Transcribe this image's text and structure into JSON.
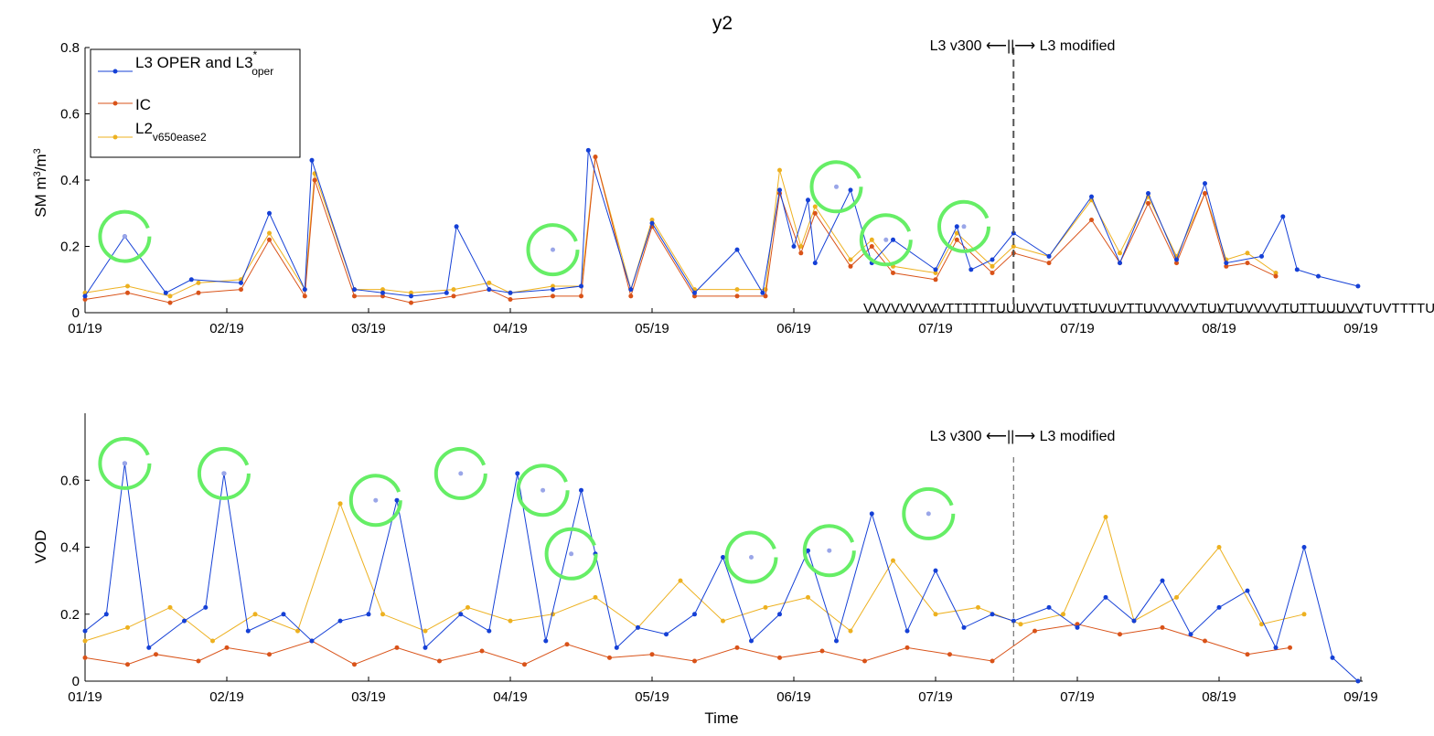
{
  "figure": {
    "title": "y2",
    "xlabel": "Time",
    "annotation": "L3 v300 ⟵||⟶ L3 modified"
  },
  "legend": {
    "entries": [
      {
        "base": "L3 OPER and L3",
        "sub": "oper",
        "sup": "*"
      },
      {
        "base": "IC",
        "sub": "",
        "sup": ""
      },
      {
        "base": "L2",
        "sub": "v650ease2",
        "sup": ""
      }
    ]
  },
  "colors": {
    "l3": "#1540d6",
    "ic": "#d95319",
    "l2": "#edb120",
    "circle": "#66ee66",
    "divider": "#555555"
  },
  "chart_data": [
    {
      "type": "line",
      "ylabel": "SM m3/m3",
      "ylabel_parts": {
        "a": "SM m",
        "b": "3",
        "c": "/m",
        "d": "3"
      },
      "ylim": [
        0,
        0.8
      ],
      "yticks": [
        "0",
        "0.2",
        "0.4",
        "0.6",
        "0.8"
      ],
      "xticks": [
        "01/19",
        "02/19",
        "03/19",
        "04/19",
        "05/19",
        "06/19",
        "07/19",
        "07/19",
        "08/19",
        "09/19"
      ],
      "divider_x": 6.55,
      "overlap_tick_text": "VVVVVVVVVTTTTTTUUUVVTUVTTUVUVTTUVVVVVTUVTUVVVVTUTTUUUVVTUVTTTTUUUVVVTT",
      "series": [
        {
          "name": "L3 OPER and L3*oper",
          "key": "l3",
          "x": [
            0,
            0.28,
            0.57,
            0.75,
            1.1,
            1.3,
            1.55,
            1.6,
            1.9,
            2.1,
            2.3,
            2.55,
            2.62,
            2.85,
            3.0,
            3.3,
            3.5,
            3.55,
            3.85,
            4.0,
            4.3,
            4.6,
            4.78,
            4.9,
            5.0,
            5.1,
            5.15,
            5.4,
            5.55,
            5.7,
            6.0,
            6.15,
            6.25,
            6.4,
            6.55,
            6.8,
            7.1,
            7.3,
            7.5,
            7.7,
            7.9,
            8.05,
            8.3,
            8.45,
            8.55,
            8.7,
            8.98
          ],
          "y": [
            0.05,
            0.23,
            0.06,
            0.1,
            0.09,
            0.3,
            0.07,
            0.46,
            0.07,
            0.06,
            0.05,
            0.06,
            0.26,
            0.07,
            0.06,
            0.07,
            0.08,
            0.49,
            0.07,
            0.27,
            0.06,
            0.19,
            0.06,
            0.37,
            0.2,
            0.34,
            0.15,
            0.37,
            0.15,
            0.22,
            0.13,
            0.26,
            0.13,
            0.16,
            0.24,
            0.17,
            0.35,
            0.15,
            0.36,
            0.16,
            0.39,
            0.15,
            0.17,
            0.29,
            0.13,
            0.11,
            0.08
          ]
        },
        {
          "name": "IC",
          "key": "ic",
          "x": [
            0,
            0.3,
            0.6,
            0.8,
            1.1,
            1.3,
            1.55,
            1.62,
            1.9,
            2.1,
            2.3,
            2.6,
            2.85,
            3.0,
            3.3,
            3.5,
            3.6,
            3.85,
            4.0,
            4.3,
            4.6,
            4.8,
            4.9,
            5.05,
            5.15,
            5.4,
            5.55,
            5.7,
            6.0,
            6.15,
            6.4,
            6.55,
            6.8,
            7.1,
            7.3,
            7.5,
            7.7,
            7.9,
            8.05,
            8.2,
            8.4
          ],
          "y": [
            0.04,
            0.06,
            0.03,
            0.06,
            0.07,
            0.22,
            0.05,
            0.4,
            0.05,
            0.05,
            0.03,
            0.05,
            0.07,
            0.04,
            0.05,
            0.05,
            0.47,
            0.05,
            0.26,
            0.05,
            0.05,
            0.05,
            0.36,
            0.18,
            0.3,
            0.14,
            0.2,
            0.12,
            0.1,
            0.22,
            0.12,
            0.18,
            0.15,
            0.28,
            0.15,
            0.33,
            0.15,
            0.36,
            0.14,
            0.15,
            0.11
          ]
        },
        {
          "name": "L2v650ease2",
          "key": "l2",
          "x": [
            0,
            0.3,
            0.6,
            0.8,
            1.1,
            1.3,
            1.55,
            1.62,
            1.9,
            2.1,
            2.3,
            2.6,
            2.85,
            3.0,
            3.3,
            3.5,
            3.6,
            3.85,
            4.0,
            4.3,
            4.6,
            4.8,
            4.9,
            5.05,
            5.15,
            5.4,
            5.55,
            5.7,
            6.0,
            6.15,
            6.4,
            6.55,
            6.8,
            7.1,
            7.3,
            7.5,
            7.7,
            7.9,
            8.05,
            8.2,
            8.4
          ],
          "y": [
            0.06,
            0.08,
            0.05,
            0.09,
            0.1,
            0.24,
            0.07,
            0.42,
            0.07,
            0.07,
            0.06,
            0.07,
            0.09,
            0.06,
            0.08,
            0.08,
            0.47,
            0.07,
            0.28,
            0.07,
            0.07,
            0.07,
            0.43,
            0.2,
            0.32,
            0.16,
            0.22,
            0.14,
            0.12,
            0.24,
            0.14,
            0.2,
            0.17,
            0.34,
            0.18,
            0.35,
            0.17,
            0.36,
            0.16,
            0.18,
            0.12
          ]
        }
      ],
      "highlighted_points": [
        {
          "x": 0.28,
          "y": 0.23
        },
        {
          "x": 3.3,
          "y": 0.19
        },
        {
          "x": 5.3,
          "y": 0.38
        },
        {
          "x": 5.65,
          "y": 0.22
        },
        {
          "x": 6.2,
          "y": 0.26
        }
      ]
    },
    {
      "type": "line",
      "ylabel": "VOD",
      "ylim": [
        0,
        0.8
      ],
      "yticks": [
        "0",
        "0.2",
        "0.4",
        "0.6"
      ],
      "xticks": [
        "01/19",
        "02/19",
        "03/19",
        "04/19",
        "05/19",
        "06/19",
        "07/19",
        "07/19",
        "08/19",
        "09/19"
      ],
      "divider_x": 6.55,
      "series": [
        {
          "name": "L3 OPER and L3*oper",
          "key": "l3",
          "x": [
            0,
            0.15,
            0.28,
            0.45,
            0.7,
            0.85,
            0.98,
            1.15,
            1.4,
            1.6,
            1.8,
            2.0,
            2.2,
            2.4,
            2.65,
            2.85,
            3.05,
            3.25,
            3.5,
            3.6,
            3.75,
            3.9,
            4.1,
            4.3,
            4.5,
            4.7,
            4.9,
            5.1,
            5.3,
            5.55,
            5.8,
            6.0,
            6.2,
            6.4,
            6.55,
            6.8,
            7.0,
            7.2,
            7.4,
            7.6,
            7.8,
            8.0,
            8.2,
            8.4,
            8.6,
            8.8,
            8.98
          ],
          "y": [
            0.15,
            0.2,
            0.65,
            0.1,
            0.18,
            0.22,
            0.62,
            0.15,
            0.2,
            0.12,
            0.18,
            0.2,
            0.54,
            0.1,
            0.2,
            0.15,
            0.62,
            0.12,
            0.57,
            0.38,
            0.1,
            0.16,
            0.14,
            0.2,
            0.37,
            0.12,
            0.2,
            0.39,
            0.12,
            0.5,
            0.15,
            0.33,
            0.16,
            0.2,
            0.18,
            0.22,
            0.16,
            0.25,
            0.18,
            0.3,
            0.14,
            0.22,
            0.27,
            0.1,
            0.4,
            0.07,
            0.0
          ]
        },
        {
          "name": "IC",
          "key": "ic",
          "x": [
            0,
            0.3,
            0.5,
            0.8,
            1.0,
            1.3,
            1.6,
            1.9,
            2.2,
            2.5,
            2.8,
            3.1,
            3.4,
            3.7,
            4.0,
            4.3,
            4.6,
            4.9,
            5.2,
            5.5,
            5.8,
            6.1,
            6.4,
            6.7,
            7.0,
            7.3,
            7.6,
            7.9,
            8.2,
            8.5
          ],
          "y": [
            0.07,
            0.05,
            0.08,
            0.06,
            0.1,
            0.08,
            0.12,
            0.05,
            0.1,
            0.06,
            0.09,
            0.05,
            0.11,
            0.07,
            0.08,
            0.06,
            0.1,
            0.07,
            0.09,
            0.06,
            0.1,
            0.08,
            0.06,
            0.15,
            0.17,
            0.14,
            0.16,
            0.12,
            0.08,
            0.1
          ]
        },
        {
          "name": "L2v650ease2",
          "key": "l2",
          "x": [
            0,
            0.3,
            0.6,
            0.9,
            1.2,
            1.5,
            1.8,
            1.8,
            2.1,
            2.4,
            2.7,
            3.0,
            3.3,
            3.6,
            3.9,
            4.2,
            4.5,
            4.8,
            5.1,
            5.4,
            5.7,
            6.0,
            6.3,
            6.6,
            6.9,
            7.2,
            7.4,
            7.7,
            8.0,
            8.3,
            8.6
          ],
          "y": [
            0.12,
            0.16,
            0.22,
            0.12,
            0.2,
            0.15,
            0.53,
            0.53,
            0.2,
            0.15,
            0.22,
            0.18,
            0.2,
            0.25,
            0.16,
            0.3,
            0.18,
            0.22,
            0.25,
            0.15,
            0.36,
            0.2,
            0.22,
            0.17,
            0.2,
            0.49,
            0.18,
            0.25,
            0.4,
            0.17,
            0.2
          ]
        }
      ],
      "highlighted_points": [
        {
          "x": 0.28,
          "y": 0.65
        },
        {
          "x": 0.98,
          "y": 0.62
        },
        {
          "x": 2.05,
          "y": 0.54
        },
        {
          "x": 2.65,
          "y": 0.62
        },
        {
          "x": 3.23,
          "y": 0.57
        },
        {
          "x": 3.43,
          "y": 0.38
        },
        {
          "x": 4.7,
          "y": 0.37
        },
        {
          "x": 5.25,
          "y": 0.39
        },
        {
          "x": 5.95,
          "y": 0.5
        }
      ]
    }
  ]
}
